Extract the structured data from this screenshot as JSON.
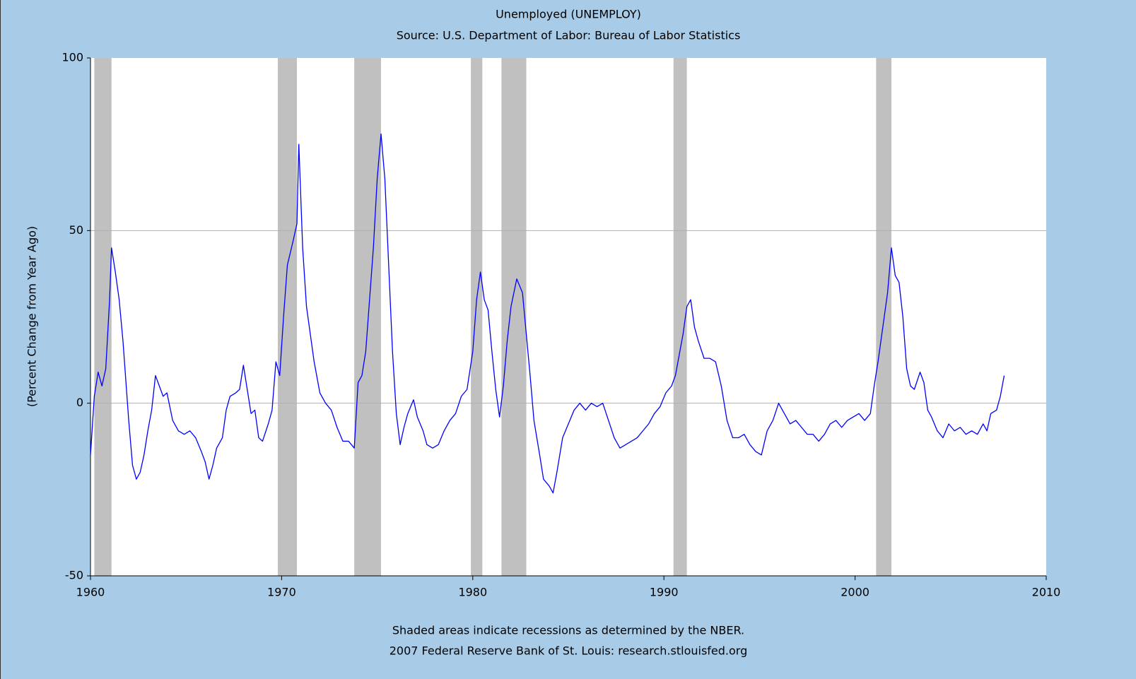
{
  "chart_data": {
    "type": "line",
    "title": "Unemployed (UNEMPLOY)",
    "subtitle": "Source: U.S. Department of Labor: Bureau of Labor Statistics",
    "y_label": "(Percent Change from Year Ago)",
    "notes": [
      "Shaded areas indicate recessions as determined by the NBER.",
      "2007 Federal Reserve Bank of St. Louis: research.stlouisfed.org"
    ],
    "color": "#0000ff",
    "recession_color": "#c0c0c0",
    "recessions": [
      [
        1960.2,
        1961.1
      ],
      [
        1969.8,
        1970.8
      ],
      [
        1973.8,
        1975.2
      ],
      [
        1979.9,
        1980.5
      ],
      [
        1981.5,
        1982.8
      ],
      [
        1990.5,
        1991.2
      ],
      [
        2001.1,
        2001.9
      ]
    ],
    "xlim": [
      1960,
      2010
    ],
    "xticks": [
      1960,
      1970,
      1980,
      1990,
      2000,
      2010
    ],
    "ylim": [
      -50,
      100
    ],
    "yticks": [
      -50,
      0,
      50,
      100
    ],
    "grid": true,
    "x": [
      1960.0,
      1960.2,
      1960.4,
      1960.6,
      1960.8,
      1961.0,
      1961.1,
      1961.3,
      1961.5,
      1961.7,
      1962.0,
      1962.2,
      1962.4,
      1962.6,
      1962.8,
      1963.0,
      1963.2,
      1963.4,
      1963.6,
      1963.8,
      1964.0,
      1964.3,
      1964.6,
      1964.9,
      1965.2,
      1965.5,
      1965.8,
      1966.0,
      1966.2,
      1966.4,
      1966.6,
      1966.9,
      1967.1,
      1967.3,
      1967.6,
      1967.8,
      1968.0,
      1968.2,
      1968.4,
      1968.6,
      1968.8,
      1969.0,
      1969.3,
      1969.5,
      1969.7,
      1969.9,
      1970.1,
      1970.3,
      1970.6,
      1970.8,
      1970.9,
      1971.1,
      1971.3,
      1971.5,
      1971.7,
      1972.0,
      1972.3,
      1972.6,
      1972.9,
      1973.2,
      1973.5,
      1973.8,
      1974.0,
      1974.2,
      1974.4,
      1974.6,
      1974.8,
      1975.0,
      1975.2,
      1975.4,
      1975.6,
      1975.8,
      1976.0,
      1976.2,
      1976.4,
      1976.6,
      1976.9,
      1977.1,
      1977.4,
      1977.6,
      1977.9,
      1978.2,
      1978.5,
      1978.8,
      1979.1,
      1979.4,
      1979.7,
      1980.0,
      1980.2,
      1980.4,
      1980.6,
      1980.8,
      1981.0,
      1981.2,
      1981.4,
      1981.6,
      1981.8,
      1982.0,
      1982.3,
      1982.6,
      1982.8,
      1983.0,
      1983.2,
      1983.5,
      1983.7,
      1984.0,
      1984.2,
      1984.4,
      1984.7,
      1985.0,
      1985.3,
      1985.6,
      1985.9,
      1986.2,
      1986.5,
      1986.8,
      1987.1,
      1987.4,
      1987.7,
      1988.0,
      1988.3,
      1988.6,
      1988.9,
      1989.2,
      1989.5,
      1989.8,
      1990.1,
      1990.4,
      1990.6,
      1990.8,
      1991.0,
      1991.2,
      1991.4,
      1991.6,
      1991.8,
      1992.1,
      1992.4,
      1992.7,
      1993.0,
      1993.3,
      1993.6,
      1993.9,
      1994.2,
      1994.5,
      1994.8,
      1995.1,
      1995.4,
      1995.7,
      1996.0,
      1996.3,
      1996.6,
      1996.9,
      1997.2,
      1997.5,
      1997.8,
      1998.1,
      1998.4,
      1998.7,
      1999.0,
      1999.3,
      1999.6,
      1999.9,
      2000.2,
      2000.5,
      2000.8,
      2001.0,
      2001.2,
      2001.4,
      2001.7,
      2001.9,
      2002.1,
      2002.3,
      2002.5,
      2002.7,
      2002.9,
      2003.1,
      2003.4,
      2003.6,
      2003.8,
      2004.0,
      2004.3,
      2004.6,
      2004.9,
      2005.2,
      2005.5,
      2005.8,
      2006.1,
      2006.4,
      2006.7,
      2006.9,
      2007.1,
      2007.4,
      2007.6,
      2007.8
    ],
    "values": [
      -15,
      2,
      9,
      5,
      10,
      30,
      45,
      38,
      30,
      18,
      -5,
      -18,
      -22,
      -20,
      -15,
      -8,
      -2,
      8,
      5,
      2,
      3,
      -5,
      -8,
      -9,
      -8,
      -10,
      -14,
      -17,
      -22,
      -18,
      -13,
      -10,
      -2,
      2,
      3,
      4,
      11,
      4,
      -3,
      -2,
      -10,
      -11,
      -6,
      -2,
      12,
      8,
      25,
      40,
      47,
      52,
      75,
      45,
      28,
      20,
      12,
      3,
      0,
      -2,
      -7,
      -11,
      -11,
      -13,
      6,
      8,
      15,
      30,
      45,
      65,
      78,
      65,
      40,
      15,
      -3,
      -12,
      -7,
      -3,
      1,
      -4,
      -8,
      -12,
      -13,
      -12,
      -8,
      -5,
      -3,
      2,
      4,
      15,
      30,
      38,
      30,
      27,
      15,
      4,
      -4,
      5,
      18,
      28,
      36,
      32,
      20,
      8,
      -5,
      -15,
      -22,
      -24,
      -26,
      -20,
      -10,
      -6,
      -2,
      0,
      -2,
      0,
      -1,
      0,
      -5,
      -10,
      -13,
      -12,
      -11,
      -10,
      -8,
      -6,
      -3,
      -1,
      3,
      5,
      8,
      14,
      20,
      28,
      30,
      22,
      18,
      13,
      13,
      12,
      5,
      -5,
      -10,
      -10,
      -9,
      -12,
      -14,
      -15,
      -8,
      -5,
      0,
      -3,
      -6,
      -5,
      -7,
      -9,
      -9,
      -11,
      -9,
      -6,
      -5,
      -7,
      -5,
      -4,
      -3,
      -5,
      -3,
      5,
      12,
      20,
      32,
      45,
      37,
      35,
      25,
      10,
      5,
      4,
      9,
      6,
      -2,
      -4,
      -8,
      -10,
      -6,
      -8,
      -7,
      -9,
      -8,
      -9,
      -6,
      -8,
      -3,
      -2,
      2,
      8
    ]
  }
}
